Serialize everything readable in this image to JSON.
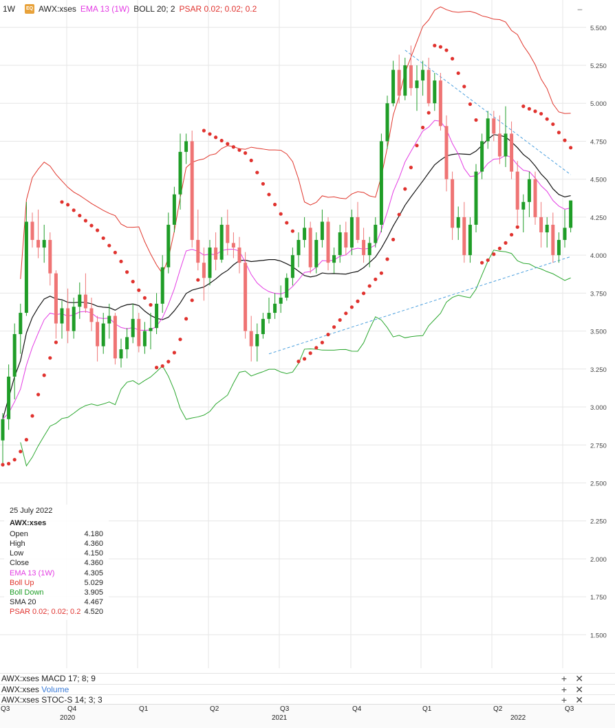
{
  "chart_data": {
    "type": "candlestick",
    "symbol": "AWX:xses",
    "timeframe": "1W",
    "exchange_badge": "EQ",
    "overlays": [
      "EMA 13 (1W)",
      "BOLL 20; 2",
      "PSAR 0.02; 0.02; 0.2"
    ],
    "y_ticks": [
      "5.500",
      "5.250",
      "5.000",
      "4.750",
      "4.500",
      "4.250",
      "4.000",
      "3.750",
      "3.500",
      "3.250",
      "3.000",
      "2.750",
      "2.500",
      "2.250",
      "2.000",
      "1.750",
      "1.500"
    ],
    "ylim": [
      1.28,
      5.68
    ],
    "x_quarter_labels": [
      "Q3",
      "Q4",
      "Q1",
      "Q2",
      "Q3",
      "Q4",
      "Q1",
      "Q2",
      "Q3"
    ],
    "x_year_labels": [
      "2020",
      "2021",
      "2022"
    ],
    "colors": {
      "up": "#1f9d27",
      "down": "#ef7474",
      "ema": "#e33be3",
      "boll": "#e0352b",
      "boll_down": "#2aa72e",
      "sma": "#111111",
      "psar": "#e0322e",
      "trend": "#4a9fde",
      "grid": "#e6e6e6"
    },
    "candles": [
      [
        2.78,
        2.96,
        2.62,
        2.92
      ],
      [
        2.92,
        3.28,
        2.85,
        3.2
      ],
      [
        3.2,
        3.55,
        3.05,
        3.48
      ],
      [
        3.48,
        3.68,
        3.35,
        3.62
      ],
      [
        3.62,
        4.35,
        3.6,
        4.22
      ],
      [
        4.22,
        4.28,
        4.05,
        4.1
      ],
      [
        4.1,
        4.3,
        3.98,
        4.05
      ],
      [
        4.05,
        4.2,
        3.95,
        4.1
      ],
      [
        4.1,
        4.15,
        3.8,
        3.88
      ],
      [
        3.88,
        3.9,
        3.45,
        3.55
      ],
      [
        3.55,
        3.7,
        3.45,
        3.65
      ],
      [
        3.65,
        3.78,
        3.42,
        3.5
      ],
      [
        3.5,
        3.72,
        3.45,
        3.66
      ],
      [
        3.66,
        3.82,
        3.58,
        3.74
      ],
      [
        3.74,
        3.88,
        3.62,
        3.65
      ],
      [
        3.65,
        3.72,
        3.5,
        3.56
      ],
      [
        3.56,
        3.6,
        3.3,
        3.4
      ],
      [
        3.4,
        3.62,
        3.35,
        3.55
      ],
      [
        3.55,
        3.68,
        3.45,
        3.6
      ],
      [
        3.6,
        3.62,
        3.28,
        3.32
      ],
      [
        3.32,
        3.45,
        3.26,
        3.38
      ],
      [
        3.38,
        3.52,
        3.32,
        3.46
      ],
      [
        3.46,
        3.68,
        3.42,
        3.58
      ],
      [
        3.58,
        3.62,
        3.36,
        3.4
      ],
      [
        3.4,
        3.56,
        3.35,
        3.5
      ],
      [
        3.5,
        3.62,
        3.38,
        3.52
      ],
      [
        3.52,
        3.75,
        3.48,
        3.68
      ],
      [
        3.68,
        4.0,
        3.62,
        3.92
      ],
      [
        3.92,
        4.28,
        3.88,
        4.2
      ],
      [
        4.2,
        4.45,
        4.15,
        4.4
      ],
      [
        4.4,
        4.8,
        4.3,
        4.68
      ],
      [
        4.68,
        4.8,
        4.6,
        4.75
      ],
      [
        4.75,
        4.82,
        4.05,
        4.1
      ],
      [
        4.1,
        4.3,
        3.9,
        3.95
      ],
      [
        3.95,
        4.05,
        3.7,
        3.85
      ],
      [
        3.85,
        4.1,
        3.8,
        4.05
      ],
      [
        4.05,
        4.15,
        3.9,
        3.97
      ],
      [
        3.97,
        4.25,
        3.95,
        4.2
      ],
      [
        4.2,
        4.3,
        4.0,
        4.08
      ],
      [
        4.08,
        4.15,
        3.98,
        4.05
      ],
      [
        4.05,
        4.12,
        3.88,
        3.95
      ],
      [
        3.95,
        4.02,
        3.45,
        3.5
      ],
      [
        3.5,
        3.6,
        3.3,
        3.4
      ],
      [
        3.4,
        3.55,
        3.3,
        3.48
      ],
      [
        3.48,
        3.62,
        3.45,
        3.58
      ],
      [
        3.58,
        3.72,
        3.55,
        3.62
      ],
      [
        3.62,
        3.75,
        3.58,
        3.68
      ],
      [
        3.68,
        3.8,
        3.62,
        3.72
      ],
      [
        3.72,
        3.88,
        3.7,
        3.85
      ],
      [
        3.85,
        4.05,
        3.8,
        4.0
      ],
      [
        4.0,
        4.15,
        3.92,
        4.1
      ],
      [
        4.1,
        4.25,
        4.05,
        4.18
      ],
      [
        4.18,
        4.22,
        3.88,
        3.92
      ],
      [
        3.92,
        4.15,
        3.88,
        4.1
      ],
      [
        4.1,
        4.3,
        4.05,
        4.22
      ],
      [
        4.22,
        4.25,
        3.9,
        3.95
      ],
      [
        3.95,
        4.05,
        3.88,
        4.0
      ],
      [
        4.0,
        4.2,
        3.95,
        4.15
      ],
      [
        4.15,
        4.22,
        4.0,
        4.05
      ],
      [
        4.05,
        4.3,
        4.0,
        4.25
      ],
      [
        4.25,
        4.35,
        4.08,
        4.1
      ],
      [
        4.1,
        4.18,
        3.95,
        4.0
      ],
      [
        4.0,
        4.12,
        3.92,
        4.08
      ],
      [
        4.08,
        4.25,
        4.05,
        4.2
      ],
      [
        4.2,
        4.8,
        4.15,
        4.75
      ],
      [
        4.75,
        5.05,
        4.7,
        5.0
      ],
      [
        5.0,
        5.28,
        4.98,
        5.22
      ],
      [
        5.22,
        5.32,
        5.0,
        5.05
      ],
      [
        5.05,
        5.3,
        5.02,
        5.25
      ],
      [
        5.25,
        5.38,
        5.05,
        5.1
      ],
      [
        5.1,
        5.25,
        4.95,
        5.15
      ],
      [
        5.15,
        5.28,
        5.05,
        5.22
      ],
      [
        5.22,
        5.3,
        4.98,
        5.0
      ],
      [
        5.0,
        5.2,
        4.95,
        5.15
      ],
      [
        5.15,
        5.2,
        4.82,
        4.85
      ],
      [
        4.85,
        4.92,
        4.42,
        4.5
      ],
      [
        4.5,
        4.55,
        4.1,
        4.18
      ],
      [
        4.18,
        4.32,
        4.1,
        4.25
      ],
      [
        4.25,
        4.35,
        3.95,
        4.0
      ],
      [
        4.0,
        4.25,
        3.95,
        4.2
      ],
      [
        4.2,
        4.6,
        4.15,
        4.55
      ],
      [
        4.55,
        4.8,
        4.5,
        4.75
      ],
      [
        4.75,
        4.95,
        4.7,
        4.9
      ],
      [
        4.9,
        4.95,
        4.75,
        4.8
      ],
      [
        4.8,
        4.92,
        4.6,
        4.65
      ],
      [
        4.65,
        4.98,
        4.58,
        4.8
      ],
      [
        4.8,
        4.88,
        4.5,
        4.55
      ],
      [
        4.55,
        4.62,
        4.2,
        4.3
      ],
      [
        4.3,
        4.4,
        4.15,
        4.35
      ],
      [
        4.35,
        4.55,
        4.25,
        4.5
      ],
      [
        4.5,
        4.55,
        4.2,
        4.25
      ],
      [
        4.25,
        4.35,
        4.05,
        4.15
      ],
      [
        4.15,
        4.25,
        4.05,
        4.2
      ],
      [
        4.2,
        4.28,
        3.95,
        4.0
      ],
      [
        4.0,
        4.15,
        3.95,
        4.1
      ],
      [
        4.1,
        4.3,
        4.05,
        4.18
      ],
      [
        4.18,
        4.36,
        4.15,
        4.36
      ]
    ],
    "trendlines": [
      {
        "from": [
          45,
          3.35
        ],
        "to": [
          96,
          3.99
        ]
      },
      {
        "from": [
          68,
          5.35
        ],
        "to": [
          96,
          4.53
        ]
      }
    ]
  },
  "header": {
    "timeframe": "1W",
    "badge": "EQ",
    "symbol": "AWX:xses",
    "ema_label": "EMA 13 (1W)",
    "boll_label": "BOLL 20; 2",
    "psar_label": "PSAR 0.02; 0.02; 0.2",
    "collapse_symbol": "–"
  },
  "info": {
    "date": "25 July 2022",
    "symbol": "AWX:xses",
    "rows": [
      {
        "label": "Open",
        "value": "4.180"
      },
      {
        "label": "High",
        "value": "4.360"
      },
      {
        "label": "Low",
        "value": "4.150"
      },
      {
        "label": "Close",
        "value": "4.360"
      },
      {
        "label": "EMA 13 (1W)",
        "value": "4.305"
      },
      {
        "label": "Boll Up",
        "value": "5.029"
      },
      {
        "label": "Boll Down",
        "value": "3.905"
      },
      {
        "label": "SMA 20",
        "value": "4.467"
      },
      {
        "label": "PSAR 0.02; 0.02; 0.2",
        "value": "4.520"
      }
    ]
  },
  "panels": {
    "macd": "AWX:xses MACD 17; 8; 9",
    "volume_prefix": "AWX:xses",
    "volume_name": "Volume",
    "stoch": "AWX:xses STOC-S 14; 3; 3",
    "plus": "+",
    "close": "✕"
  },
  "xaxis": {
    "quarters": [
      "Q3",
      "Q4",
      "Q1",
      "Q2",
      "Q3",
      "Q4",
      "Q1",
      "Q2",
      "Q3"
    ],
    "years": [
      "2020",
      "2021",
      "2022"
    ]
  }
}
